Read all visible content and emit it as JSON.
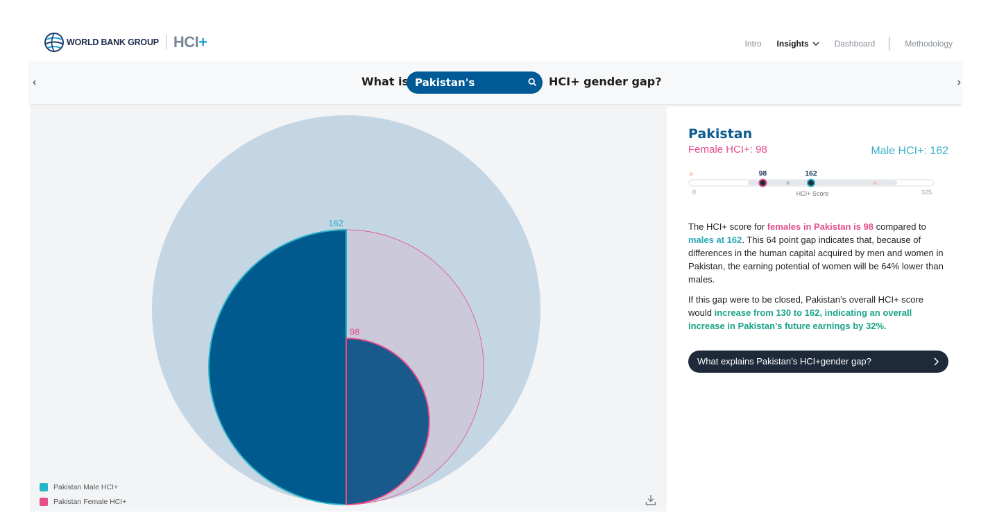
{
  "header": {
    "org_name": "WORLD BANK GROUP",
    "product_name": "HCI",
    "product_plus": "+",
    "nav": {
      "intro": "Intro",
      "insights": "Insights",
      "dashboard": "Dashboard",
      "methodology": "Methodology"
    }
  },
  "question": {
    "prefix": "What is",
    "country": "Pakistan's",
    "suffix": "HCI+ gender gap?",
    "prev_arrow": "‹",
    "next_arrow": "›"
  },
  "chart_data": {
    "type": "area",
    "series": [
      {
        "name": "Pakistan Male HCI+",
        "value": 162,
        "color": "#2ab4c8"
      },
      {
        "name": "Pakistan Female HCI+",
        "value": 98,
        "color": "#e44d8a"
      }
    ],
    "labels": {
      "male": "162",
      "female": "98"
    },
    "legend": {
      "male": "Pakistan Male HCI+",
      "female": "Pakistan Female HCI+"
    },
    "legend_position": "bottom-left",
    "colors": {
      "background_circle": "#c4d5e4",
      "male_fill": "#005a8e",
      "female_fill": "#185a8c",
      "female_ghost": "#ccc9da"
    }
  },
  "info": {
    "country": "Pakistan",
    "female_label": "Female HCI+: 98",
    "male_label": "Male HCI+: 162",
    "scale": {
      "min": "0",
      "max": "325",
      "axis_label": "HCI+ Score",
      "female_value": 98,
      "male_value": 162,
      "female_text": "98",
      "male_text": "162",
      "min_value": 0,
      "max_value": 325
    },
    "para1": {
      "t1": "The HCI+ score for ",
      "h1": "females in Pakistan is 98",
      "t2": " compared to ",
      "h2": "males at 162",
      "t3": ". This 64 point gap indicates that, because of differences in the human capital acquired by men and women in Pakistan, the earning potential of women will be 64% lower than males."
    },
    "para2": {
      "t1": "If this gap were to be closed, Pakistan’s overall HCI+ score would ",
      "h1": "increase from 130 to 162, indicating an overall increase in Pakistan’s future earnings by 32%."
    },
    "cta": "What explains Pakistan’s HCI+gender gap?"
  }
}
